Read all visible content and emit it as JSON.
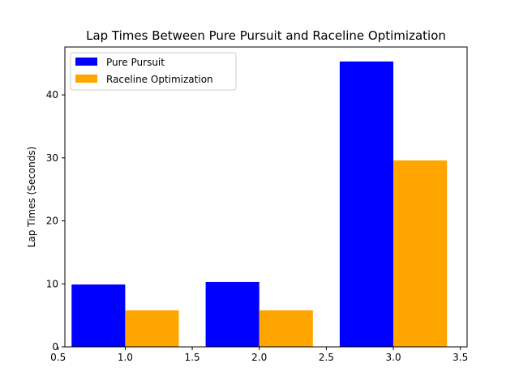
{
  "chart_data": {
    "type": "bar",
    "title": "Lap Times Between Pure Pursuit and Raceline Optimization",
    "xlabel": "",
    "ylabel": "Lap Times (Seconds)",
    "xlim": [
      0.55,
      3.55
    ],
    "ylim": [
      0,
      47.6
    ],
    "x_ticks": [
      0.5,
      1.0,
      1.5,
      2.0,
      2.5,
      3.0,
      3.5
    ],
    "x_tick_labels": [
      "0.5",
      "1.0",
      "1.5",
      "2.0",
      "2.5",
      "3.0",
      "3.5"
    ],
    "y_ticks": [
      0,
      10,
      20,
      30,
      40
    ],
    "y_tick_labels": [
      "0",
      "10",
      "20",
      "30",
      "40"
    ],
    "bar_width": 0.4,
    "grid": false,
    "legend_position": "upper-left",
    "series": [
      {
        "name": "Pure Pursuit",
        "color": "#0000ff",
        "points": [
          {
            "x": 0.8,
            "value": 9.9
          },
          {
            "x": 1.8,
            "value": 10.3
          },
          {
            "x": 2.8,
            "value": 45.3
          }
        ]
      },
      {
        "name": "Raceline Optimization",
        "color": "#ffa500",
        "points": [
          {
            "x": 1.2,
            "value": 5.8
          },
          {
            "x": 2.2,
            "value": 5.8
          },
          {
            "x": 3.2,
            "value": 29.6
          }
        ]
      }
    ]
  }
}
